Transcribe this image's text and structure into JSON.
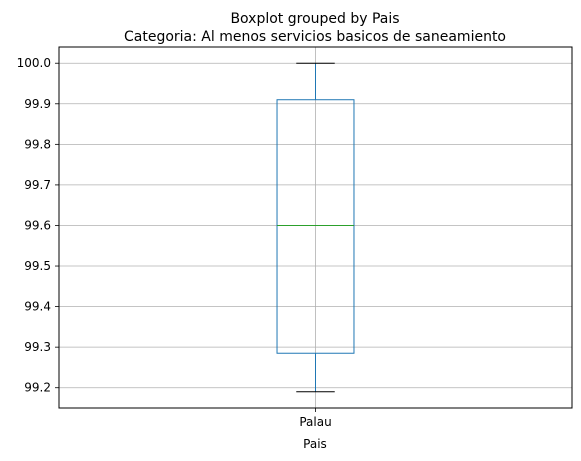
{
  "chart_data": {
    "type": "boxplot",
    "suptitle": "Boxplot grouped by Pais",
    "title": "Categoria: Al menos servicios basicos de saneamiento",
    "xlabel": "Pais",
    "ylabel": "",
    "categories": [
      "Palau"
    ],
    "boxes": [
      {
        "category": "Palau",
        "whisker_low": 99.19,
        "q1": 99.285,
        "median": 99.6,
        "q3": 99.91,
        "whisker_high": 100.0
      }
    ],
    "ylim": [
      99.15,
      100.04
    ],
    "yticks": [
      99.2,
      99.3,
      99.4,
      99.5,
      99.6,
      99.7,
      99.8,
      99.9,
      100.0
    ],
    "ytick_labels": [
      "99.2",
      "99.3",
      "99.4",
      "99.5",
      "99.6",
      "99.7",
      "99.8",
      "99.9",
      "100.0"
    ],
    "grid": true,
    "colors": {
      "box": "#1f77b4",
      "median": "#2ca02c",
      "whisker_cap": "#000000",
      "grid": "#b0b0b0"
    }
  }
}
